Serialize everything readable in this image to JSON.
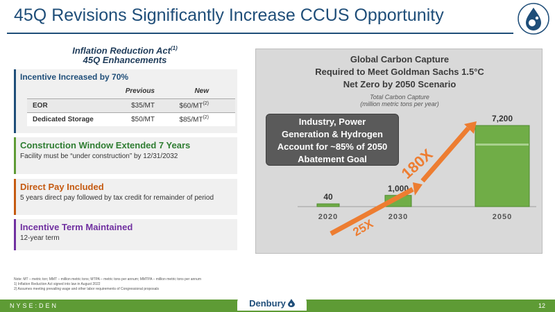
{
  "header": {
    "title": "45Q Revisions Significantly Increase CCUS Opportunity"
  },
  "ira": {
    "line1": "Inflation Reduction Act",
    "sup": "(1)",
    "line2": "45Q Enhancements"
  },
  "incentive": {
    "title": "Incentive Increased by 70%",
    "columns": [
      "",
      "Previous",
      "New"
    ],
    "rows": [
      {
        "label": "EOR",
        "previous": "$35/MT",
        "new": "$60/MT",
        "note": "(2)"
      },
      {
        "label": "Dedicated Storage",
        "previous": "$50/MT",
        "new": "$85/MT",
        "note": "(2)"
      }
    ]
  },
  "construction": {
    "title": "Construction Window Extended 7 Years",
    "body": "Facility must be “under construction” by 12/31/2032"
  },
  "direct_pay": {
    "title": "Direct Pay Included",
    "body": "5 years direct pay followed by tax credit for remainder of period"
  },
  "term": {
    "title": "Incentive Term Maintained",
    "body": "12-year term"
  },
  "notes": [
    "Note: MT – metric ton; MMT – million metric tons; MTPA – metric tons per annum; MMTPA – million metric tons per annum",
    "1)     Inflation Reduction Act signed into law in August 2022",
    "2)     Assumes meeting prevailing wage and other labor requirements of Congressional proposals"
  ],
  "chart_data": {
    "type": "bar",
    "title_lines": [
      "Global Carbon Capture",
      "Required to Meet Goldman Sachs 1.5°C",
      "Net Zero by 2050 Scenario"
    ],
    "subtitle_lines": [
      "Total Carbon Capture",
      "(million metric tons per year)"
    ],
    "categories": [
      "2020",
      "2030",
      "2050"
    ],
    "values": [
      40,
      1000,
      7200
    ],
    "value_labels": [
      "40",
      "1,000",
      "7,200"
    ],
    "ylim": [
      0,
      7200
    ],
    "bar_color": "#70ad47",
    "arrow_color": "#ed7d31",
    "arrow_labels": [
      "25X",
      "180X"
    ],
    "callout_lines": [
      "Industry, Power",
      "Generation & Hydrogen",
      "Account for ~85% of 2050",
      "Abatement Goal"
    ]
  },
  "footer": {
    "ticker": "NYSE:DEN",
    "brand": "Denbury",
    "page": "12"
  }
}
